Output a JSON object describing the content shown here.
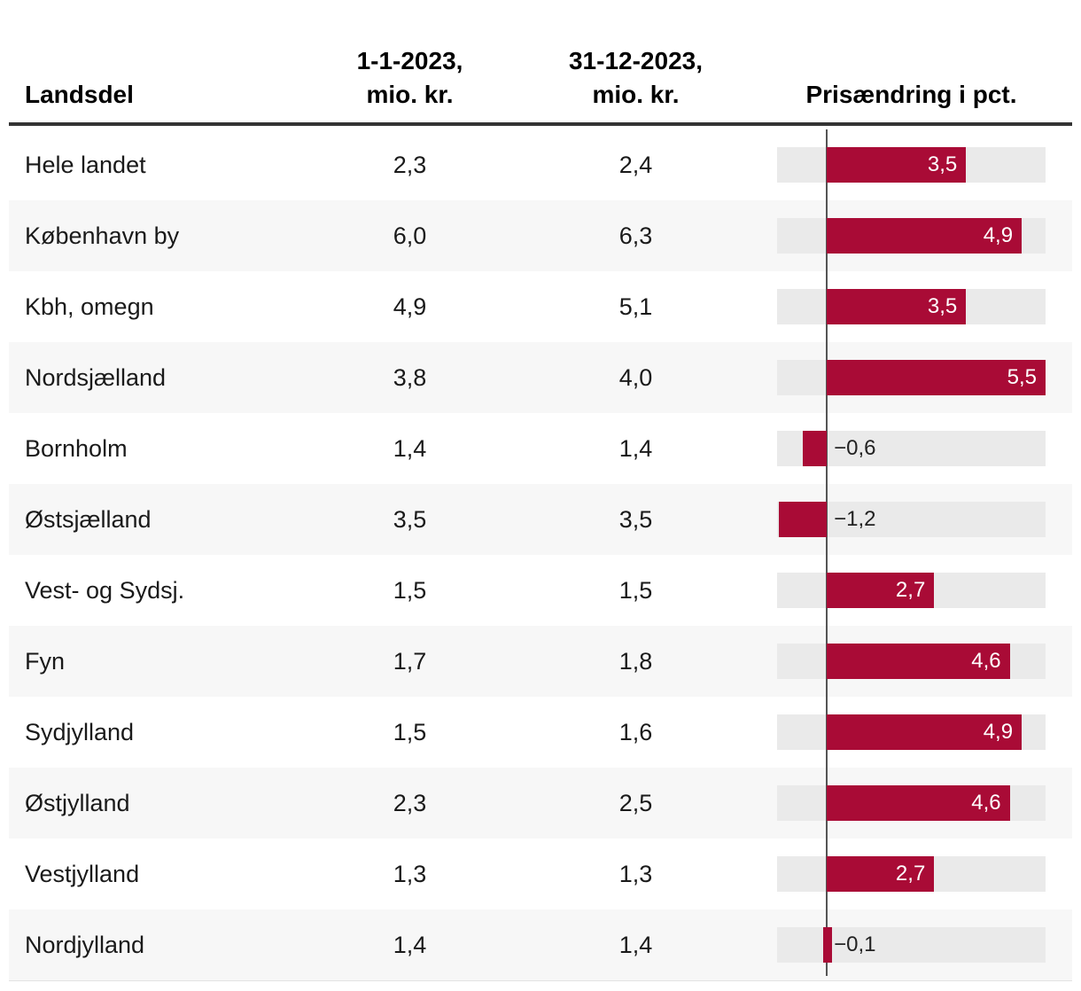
{
  "header": {
    "col1": "Landsdel",
    "col2_line1": "1-1-2023,",
    "col2_line2": "mio. kr.",
    "col3_line1": "31-12-2023,",
    "col3_line2": "mio. kr.",
    "col4": "Prisændring i pct."
  },
  "table": {
    "rows": [
      {
        "region": "Hele landet",
        "price_start": "2,3",
        "price_end": "2,4",
        "pct_value": 3.5,
        "pct_label": "3,5"
      },
      {
        "region": "København by",
        "price_start": "6,0",
        "price_end": "6,3",
        "pct_value": 4.9,
        "pct_label": "4,9"
      },
      {
        "region": "Kbh, omegn",
        "price_start": "4,9",
        "price_end": "5,1",
        "pct_value": 3.5,
        "pct_label": "3,5"
      },
      {
        "region": "Nordsjælland",
        "price_start": "3,8",
        "price_end": "4,0",
        "pct_value": 5.5,
        "pct_label": "5,5"
      },
      {
        "region": "Bornholm",
        "price_start": "1,4",
        "price_end": "1,4",
        "pct_value": -0.6,
        "pct_label": "−0,6"
      },
      {
        "region": "Østsjælland",
        "price_start": "3,5",
        "price_end": "3,5",
        "pct_value": -1.2,
        "pct_label": "−1,2"
      },
      {
        "region": "Vest- og Sydsj.",
        "price_start": "1,5",
        "price_end": "1,5",
        "pct_value": 2.7,
        "pct_label": "2,7"
      },
      {
        "region": "Fyn",
        "price_start": "1,7",
        "price_end": "1,8",
        "pct_value": 4.6,
        "pct_label": "4,6"
      },
      {
        "region": "Sydjylland",
        "price_start": "1,5",
        "price_end": "1,6",
        "pct_value": 4.9,
        "pct_label": "4,9"
      },
      {
        "region": "Østjylland",
        "price_start": "2,3",
        "price_end": "2,5",
        "pct_value": 4.6,
        "pct_label": "4,6"
      },
      {
        "region": "Vestjylland",
        "price_start": "1,3",
        "price_end": "1,3",
        "pct_value": 2.7,
        "pct_label": "2,7"
      },
      {
        "region": "Nordjylland",
        "price_start": "1,4",
        "price_end": "1,4",
        "pct_value": -0.1,
        "pct_label": "−0,1"
      }
    ]
  },
  "chart_data": {
    "type": "bar",
    "orientation": "horizontal",
    "title": "",
    "categories": [
      "Hele landet",
      "København by",
      "Kbh, omegn",
      "Nordsjælland",
      "Bornholm",
      "Østsjælland",
      "Vest- og Sydsj.",
      "Fyn",
      "Sydjylland",
      "Østjylland",
      "Vestjylland",
      "Nordjylland"
    ],
    "series": [
      {
        "name": "1-1-2023, mio. kr.",
        "values": [
          2.3,
          6.0,
          4.9,
          3.8,
          1.4,
          3.5,
          1.5,
          1.7,
          1.5,
          2.3,
          1.3,
          1.4
        ]
      },
      {
        "name": "31-12-2023, mio. kr.",
        "values": [
          2.4,
          6.3,
          5.1,
          4.0,
          1.4,
          3.5,
          1.5,
          1.8,
          1.6,
          2.5,
          1.3,
          1.4
        ]
      },
      {
        "name": "Prisændring i pct.",
        "values": [
          3.5,
          4.9,
          3.5,
          5.5,
          -0.6,
          -1.2,
          2.7,
          4.6,
          4.9,
          4.6,
          2.7,
          -0.1
        ]
      }
    ],
    "bar_series": "Prisændring i pct.",
    "xlim": [
      -1.25,
      5.5
    ],
    "grid": false,
    "legend": "none",
    "bar_color": "#a90b36",
    "track_color": "#eaeaea",
    "zero_line_color": "#555555",
    "alt_row_color": "#f7f7f7"
  }
}
